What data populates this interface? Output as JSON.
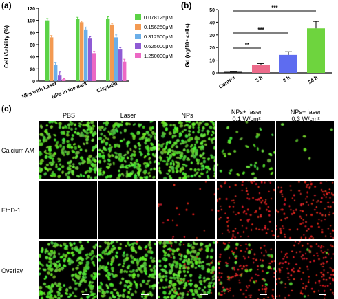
{
  "panels": {
    "a": "(a)",
    "b": "(b)",
    "c": "(c)"
  },
  "chart_data": [
    {
      "type": "bar",
      "ylabel": "Cell Viability (%)",
      "ylim": [
        0,
        120
      ],
      "yticks": [
        "0",
        "20",
        "40",
        "60",
        "80",
        "100",
        "120"
      ],
      "categories": [
        "NPs with Laser",
        "NPs in the dark",
        "Cisplatin"
      ],
      "series": [
        {
          "name": "0.078125μM",
          "color": "#5bd246",
          "values": [
            100,
            103,
            103
          ],
          "err": [
            3,
            2,
            3
          ]
        },
        {
          "name": "0.156250μM",
          "color": "#f39a52",
          "values": [
            72,
            97,
            93
          ],
          "err": [
            3,
            2,
            2
          ]
        },
        {
          "name": "0.312500μM",
          "color": "#6baee8",
          "values": [
            27,
            85,
            72
          ],
          "err": [
            4,
            4,
            4
          ]
        },
        {
          "name": "0.625000μM",
          "color": "#8f5bd4",
          "values": [
            10,
            70,
            52
          ],
          "err": [
            5,
            3,
            3
          ]
        },
        {
          "name": "1.250000μM",
          "color": "#ec68c4",
          "values": [
            3,
            46,
            32
          ],
          "err": [
            1,
            3,
            4
          ]
        }
      ]
    },
    {
      "type": "bar",
      "ylabel": "Gd (ng/10⁶ cells)",
      "ylim": [
        0,
        50
      ],
      "yticks": [
        "0",
        "10",
        "20",
        "30",
        "40",
        "50"
      ],
      "categories": [
        "Control",
        "2 h",
        "8 h",
        "24 h"
      ],
      "values": [
        0.8,
        6.2,
        14.2,
        35.2
      ],
      "err": [
        0.3,
        1.2,
        2.5,
        5.5
      ],
      "colors": [
        "#222222",
        "#ec6a8a",
        "#5e6cf0",
        "#6ed43e"
      ],
      "significance": [
        "**",
        "***",
        "***"
      ]
    }
  ],
  "micrographs": {
    "columns": [
      "PBS",
      "Laser",
      "NPs",
      "NPs+ laser\n0.1 W/cm²",
      "NPs+ laser\n0.3 W/cm²"
    ],
    "rows": [
      "Calcium AM",
      "EthD-1",
      "Overlay"
    ]
  }
}
